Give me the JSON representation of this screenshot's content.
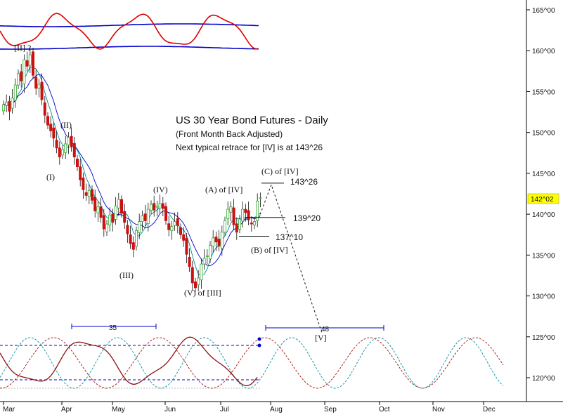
{
  "chart_data": {
    "type": "candlestick",
    "title": "US 30 Year Bond Futures - Daily",
    "subtitle": "(Front Month Back Adjusted)",
    "note": "Next typical retrace for [IV] is at 143^26",
    "last_price": "142^02",
    "y_axis": {
      "range": [
        117,
        167
      ],
      "ticks": [
        "120^00",
        "125^00",
        "130^00",
        "135^00",
        "140^00",
        "145^00",
        "150^00",
        "155^00",
        "160^00",
        "165^00"
      ],
      "tick_values": [
        120,
        125,
        130,
        135,
        140,
        145,
        150,
        155,
        160,
        165
      ]
    },
    "x_axis": {
      "months": [
        "Mar",
        "Apr",
        "May",
        "Jun",
        "Jul",
        "Aug",
        "Sep",
        "Oct",
        "Nov",
        "Dec"
      ]
    },
    "series": [
      {
        "name": "",
        "values": [
          153.4,
          153.7,
          152.6,
          154.2,
          155.8,
          157.2,
          156.3,
          158.9,
          158.1,
          159.5,
          157.0,
          155.4,
          155.9,
          154.0,
          152.1,
          150.9,
          150.2,
          149.3,
          148.1,
          147.0,
          147.9,
          148.6,
          149.4,
          148.3,
          147.0,
          145.8,
          144.2,
          143.0,
          142.3,
          142.9,
          141.7,
          140.4,
          140.9,
          139.6,
          138.2,
          138.8,
          139.9,
          139.0,
          141.0,
          141.8,
          140.1,
          139.0,
          137.6,
          136.4,
          135.7,
          138.0,
          139.1,
          139.8,
          139.2,
          140.6,
          141.2,
          140.5,
          141.0,
          141.3,
          140.7,
          139.2,
          138.1,
          138.5,
          139.1,
          138.6,
          137.5,
          136.8,
          135.1,
          133.6,
          131.6,
          131.0,
          132.2,
          133.9,
          134.6,
          134.9,
          136.2,
          137.1,
          136.6,
          136.1,
          137.8,
          139.2,
          140.6,
          140.9,
          138.7,
          137.8,
          139.4,
          140.6,
          140.2,
          139.3,
          138.8,
          139.1,
          141.6,
          142.0
        ]
      }
    ],
    "wave_labels": [
      {
        "text": "[II] ?"
      },
      {
        "text": "(I)"
      },
      {
        "text": "(II)"
      },
      {
        "text": "(III)"
      },
      {
        "text": "(IV)"
      },
      {
        "text": "(V) of [III]"
      },
      {
        "text": "(A) of [IV]"
      },
      {
        "text": "(B) of [IV]"
      },
      {
        "text": "(C) of [IV]"
      },
      {
        "text": "[V]"
      }
    ],
    "levels": [
      {
        "label": "143^26",
        "value": 143.8
      },
      {
        "label": "139^20",
        "value": 139.6
      },
      {
        "label": "137^10",
        "value": 137.3
      }
    ],
    "cycles": [
      {
        "label": "35"
      },
      {
        "label": "48"
      }
    ],
    "colors": {
      "up": "#33aa33",
      "down": "#cc1111",
      "ma_fast": "#008b8b",
      "ma_slow": "#0000cc",
      "indicator": "#dd0000",
      "band": "#0000cc",
      "cycle_red": "#aa2222",
      "cycle_teal": "#1a9aaa",
      "price_tag": "#ffff00"
    }
  }
}
